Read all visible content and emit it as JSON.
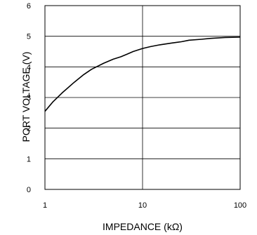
{
  "chart_data": {
    "type": "line",
    "title": "",
    "xlabel": "IMPEDANCE (kΩ)",
    "ylabel": "PORT VOLTAGE (V)",
    "xscale": "log",
    "xlim": [
      1,
      100
    ],
    "ylim": [
      0,
      6
    ],
    "xticks": [
      1,
      10,
      100
    ],
    "xtick_labels": [
      "1",
      "10",
      "100"
    ],
    "yticks": [
      0,
      1,
      2,
      3,
      4,
      5,
      6
    ],
    "ytick_labels": [
      "0",
      "1",
      "2",
      "3",
      "4",
      "5",
      "6"
    ],
    "grid": true,
    "legend": "none",
    "colors": {
      "line": "#000000",
      "grid": "#000000",
      "frame": "#000000",
      "background": "#ffffff"
    },
    "series": [
      {
        "x": [
          1,
          1.2,
          1.5,
          2,
          2.5,
          3,
          4,
          5,
          6,
          7,
          8,
          10,
          12,
          15,
          20,
          25,
          30,
          40,
          50,
          70,
          100
        ],
        "y": [
          2.55,
          2.85,
          3.15,
          3.5,
          3.75,
          3.92,
          4.12,
          4.25,
          4.33,
          4.42,
          4.5,
          4.6,
          4.66,
          4.72,
          4.78,
          4.82,
          4.87,
          4.9,
          4.93,
          4.96,
          4.97
        ]
      }
    ]
  }
}
